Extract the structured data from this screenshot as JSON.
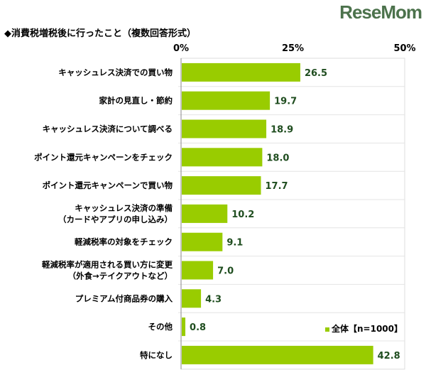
{
  "chart_data": {
    "type": "bar",
    "orientation": "horizontal",
    "title": "◆消費税増税後に行ったこと（複数回答形式）",
    "categories": [
      [
        "キャッシュレス決済での買い物"
      ],
      [
        "家計の見直し・節約"
      ],
      [
        "キャッシュレス決済について調べる"
      ],
      [
        "ポイント還元キャンペーンをチェック"
      ],
      [
        "ポイント還元キャンペーンで買い物"
      ],
      [
        "キャッシュレス決済の準備",
        "（カードやアプリの申し込み）"
      ],
      [
        "軽減税率の対象をチェック"
      ],
      [
        "軽減税率が適用される買い方に変更",
        "（外食→テイクアウトなど）"
      ],
      [
        "プレミアム付商品券の購入"
      ],
      [
        "その他"
      ],
      [
        "特になし"
      ]
    ],
    "series": [
      {
        "name": "全体【n=1000】",
        "values": [
          26.5,
          19.7,
          18.9,
          18.0,
          17.7,
          10.2,
          9.1,
          7.0,
          4.3,
          0.8,
          42.8
        ],
        "color": "#99cc00"
      }
    ],
    "xlim": [
      0,
      50
    ],
    "ticks": [
      "0%",
      "25%",
      "50%"
    ],
    "grid": true,
    "legend": "bottom-right"
  },
  "watermark": "ReseMom"
}
